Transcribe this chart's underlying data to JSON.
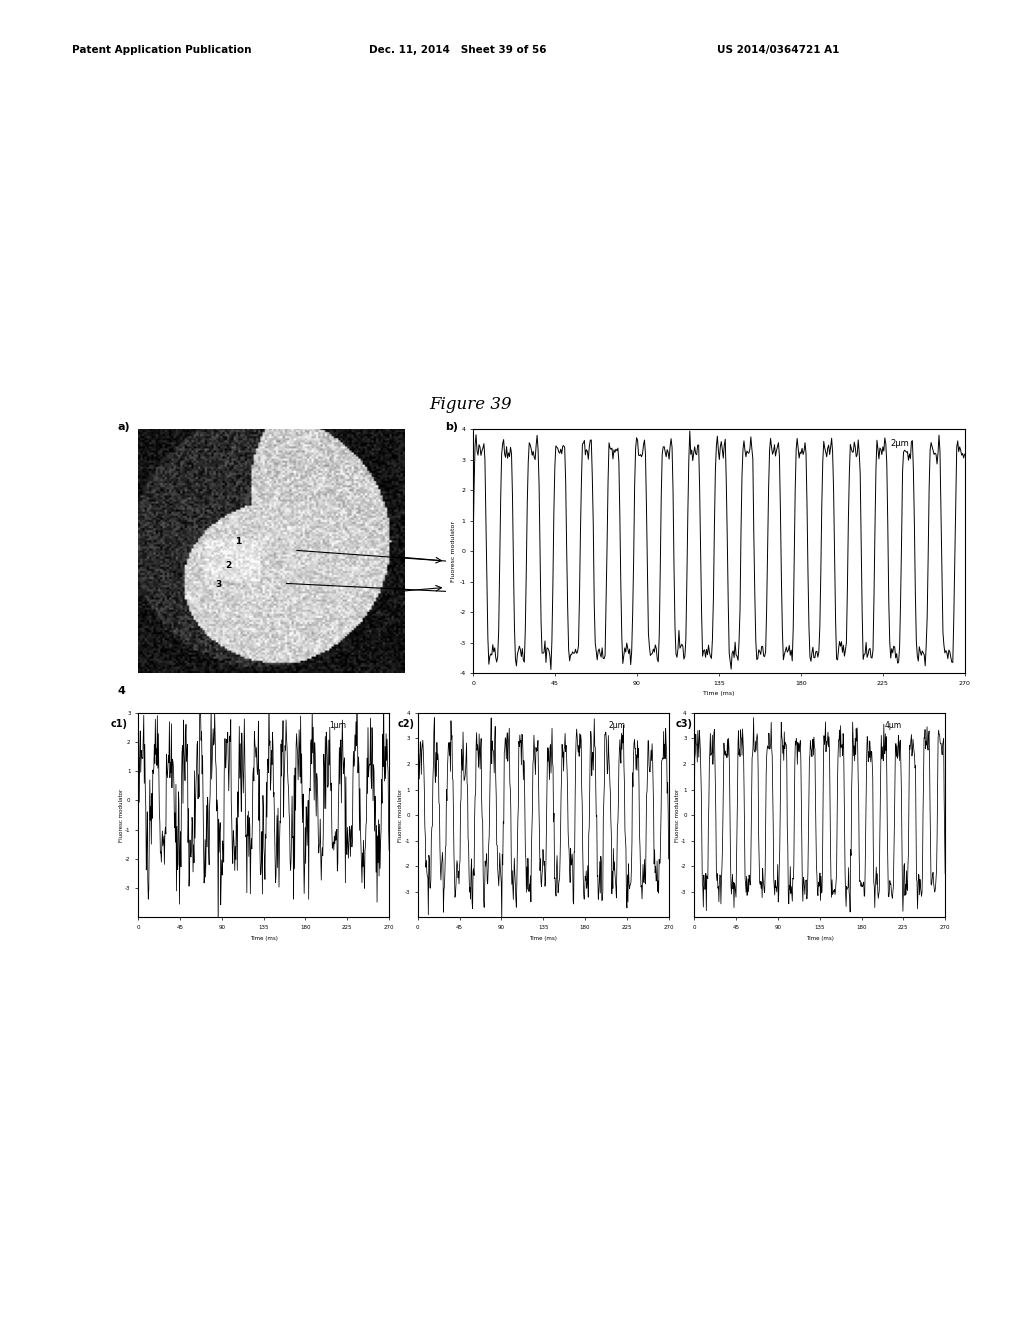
{
  "header_left": "Patent Application Publication",
  "header_mid": "Dec. 11, 2014   Sheet 39 of 56",
  "header_right": "US 2014/0364721 A1",
  "figure_title": "Figure 39",
  "bg_color": "#ffffff",
  "panel_a_label": "a)",
  "panel_b_label": "b)",
  "panel_4_label": "4",
  "panel_c1_label": "c1)",
  "panel_c2_label": "c2)",
  "panel_c3_label": "c3)",
  "plot_b_subtitle": "2μm",
  "plot_c1_subtitle": "1μm",
  "plot_c2_subtitle": "2μm",
  "plot_c3_subtitle": "4μm",
  "ylabel": "Fluoresc modulator",
  "xlabel": "Time (ms)",
  "line_color": "#000000"
}
